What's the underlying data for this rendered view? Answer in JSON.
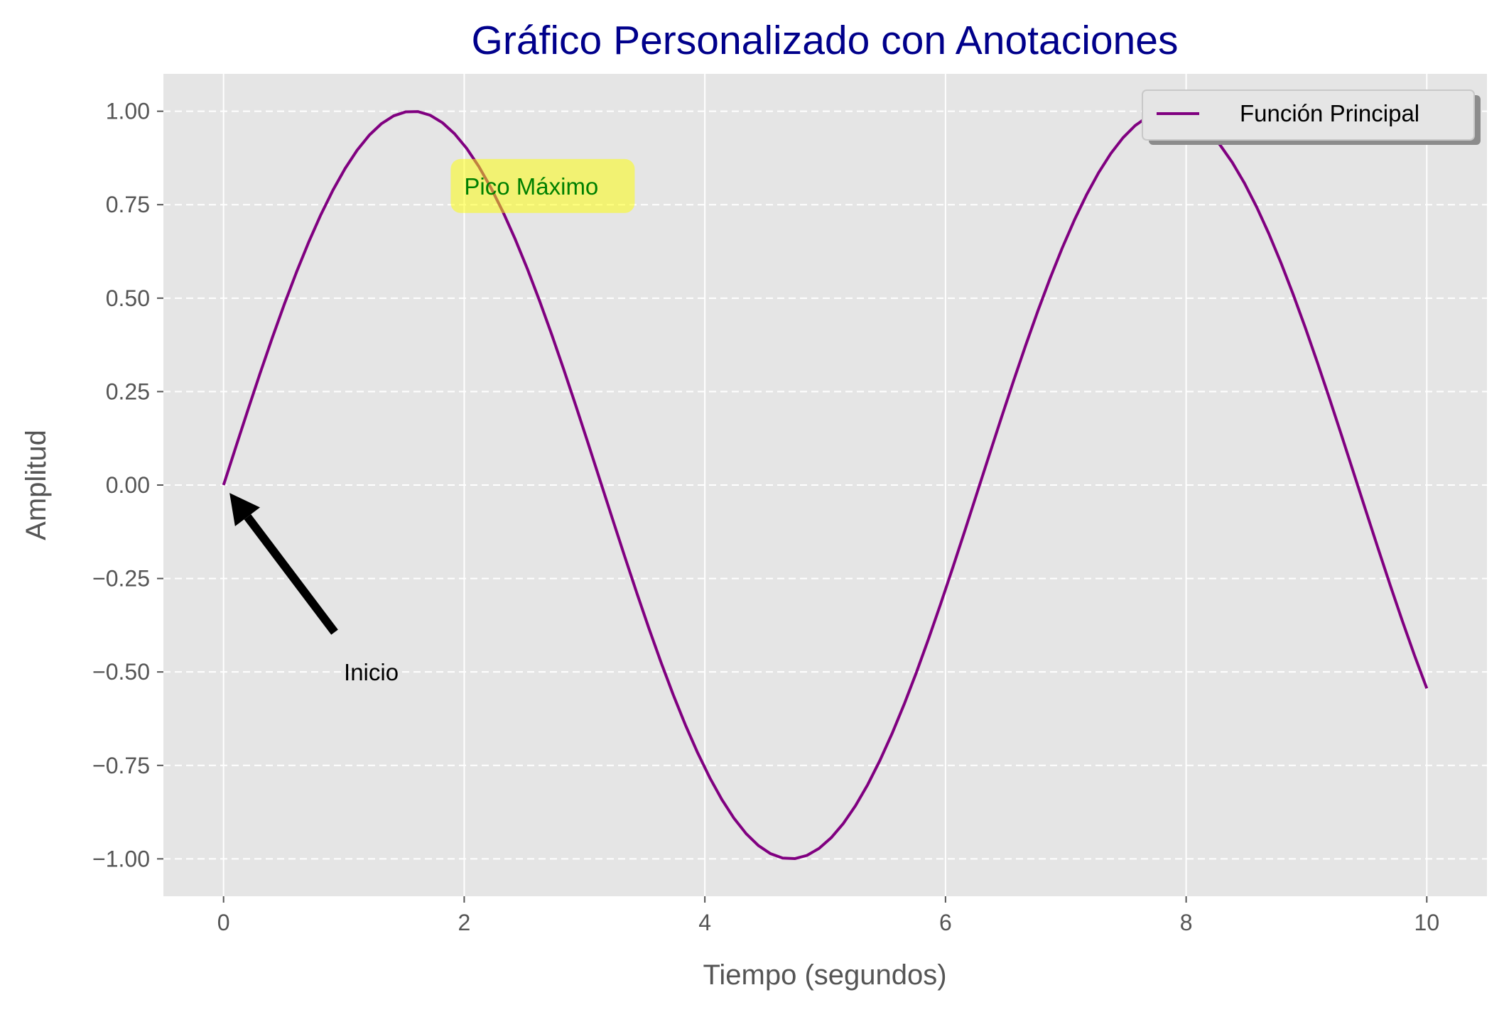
{
  "chart_data": {
    "type": "line",
    "title": "Gráfico Personalizado con Anotaciones",
    "xlabel": "Tiempo (segundos)",
    "ylabel": "Amplitud",
    "xlim": [
      -0.5,
      10.5
    ],
    "ylim": [
      -1.1,
      1.1
    ],
    "xticks": [
      0,
      2,
      4,
      6,
      8,
      10
    ],
    "xtick_labels": [
      "0",
      "2",
      "4",
      "6",
      "8",
      "10"
    ],
    "yticks": [
      1.0,
      0.75,
      0.5,
      0.25,
      0.0,
      -0.25,
      -0.5,
      -0.75,
      -1.0
    ],
    "ytick_labels": [
      "1.00",
      "0.75",
      "0.50",
      "0.25",
      "0.00",
      "−0.25",
      "−0.50",
      "−0.75",
      "−1.00"
    ],
    "grid": {
      "x": "solid",
      "y": "dashed"
    },
    "legend_position": "top-right",
    "series": [
      {
        "name": "Función Principal",
        "function": "sin(x)",
        "x_range": [
          0,
          10
        ],
        "num_points": 100,
        "color": "#800080"
      }
    ],
    "annotations": [
      {
        "text": "Inicio",
        "arrow_to": [
          0,
          0
        ],
        "text_at": [
          1,
          -0.5
        ],
        "color": "#000000"
      },
      {
        "text": "Pico Máximo",
        "at": [
          2,
          0.8
        ],
        "color": "#008000",
        "box_color": "#ffff00"
      }
    ]
  },
  "colors": {
    "title": "#00008b",
    "plot_background": "#e5e5e5",
    "grid": "#ffffff",
    "line": "#800080"
  }
}
